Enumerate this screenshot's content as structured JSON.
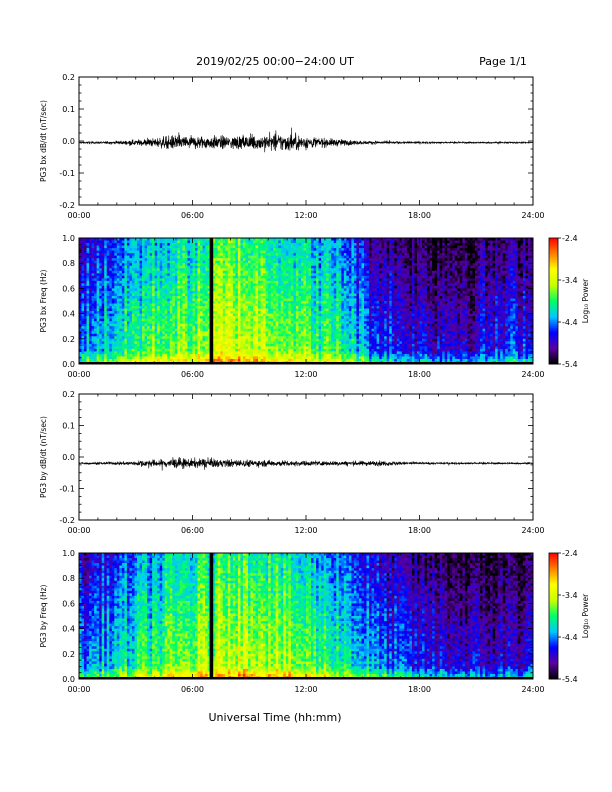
{
  "header": {
    "title": "2019/02/25  00:00−24:00 UT",
    "page": "Page 1/1"
  },
  "footer": {
    "xlabel": "Universal Time (hh:mm)"
  },
  "colors": {
    "trace": "#000000",
    "frame": "#000000",
    "gap_marker": "#000000"
  },
  "colorbar": {
    "label": "Log₁₀ Power",
    "ticks": [
      "-2.4",
      "-3.4",
      "-4.4",
      "-5.4"
    ],
    "range": [
      -5.4,
      -2.4
    ],
    "colormap": [
      "#000000",
      "#5a00a0",
      "#0000ff",
      "#00c8ff",
      "#00ff64",
      "#c8ff00",
      "#ffff00",
      "#ff8000",
      "#ff0000"
    ]
  },
  "chart_data": [
    {
      "type": "line",
      "ylabel": "PG3 bx dB/dt (nT/sec)",
      "x_range_hours": [
        0,
        24
      ],
      "xticks": [
        "00:00",
        "06:00",
        "12:00",
        "18:00",
        "24:00"
      ],
      "ylim": [
        -0.2,
        0.2
      ],
      "yticks": [
        "0.2",
        "0.1",
        "0.0",
        "-0.1",
        "-0.2"
      ],
      "baseline": -0.005,
      "activity_envelope": [
        {
          "hour": 0,
          "amp": 0.002
        },
        {
          "hour": 2,
          "amp": 0.004
        },
        {
          "hour": 4,
          "amp": 0.012
        },
        {
          "hour": 5,
          "amp": 0.02
        },
        {
          "hour": 7,
          "amp": 0.018
        },
        {
          "hour": 9,
          "amp": 0.02
        },
        {
          "hour": 11,
          "amp": 0.025
        },
        {
          "hour": 13,
          "amp": 0.012
        },
        {
          "hour": 15,
          "amp": 0.005
        },
        {
          "hour": 17,
          "amp": 0.003
        },
        {
          "hour": 20,
          "amp": 0.002
        },
        {
          "hour": 24,
          "amp": 0.002
        }
      ]
    },
    {
      "type": "heatmap",
      "ylabel": "PG3 bx Freq (Hz)",
      "x_range_hours": [
        0,
        24
      ],
      "xticks": [
        "00:00",
        "06:00",
        "12:00",
        "18:00",
        "24:00"
      ],
      "ylim": [
        0,
        1
      ],
      "yticks": [
        "1.0",
        "0.8",
        "0.6",
        "0.4",
        "0.2",
        "0.0"
      ],
      "data_gap_hour": 7.0,
      "level_profile": [
        {
          "hour": 0,
          "level": -4.3
        },
        {
          "hour": 2,
          "level": -4.0
        },
        {
          "hour": 4,
          "level": -3.7
        },
        {
          "hour": 6,
          "level": -3.6
        },
        {
          "hour": 8,
          "level": -3.3
        },
        {
          "hour": 10,
          "level": -3.4
        },
        {
          "hour": 12,
          "level": -3.7
        },
        {
          "hour": 14,
          "level": -3.9
        },
        {
          "hour": 15.5,
          "level": -4.4
        },
        {
          "hour": 18,
          "level": -4.7
        },
        {
          "hour": 21,
          "level": -4.7
        },
        {
          "hour": 24,
          "level": -4.5
        }
      ]
    },
    {
      "type": "line",
      "ylabel": "PG3 by dB/dt (nT/sec)",
      "x_range_hours": [
        0,
        24
      ],
      "xticks": [
        "00:00",
        "06:00",
        "12:00",
        "18:00",
        "24:00"
      ],
      "ylim": [
        -0.2,
        0.2
      ],
      "yticks": [
        "0.2",
        "0.1",
        "0.0",
        "-0.1",
        "-0.2"
      ],
      "baseline": -0.02,
      "activity_envelope": [
        {
          "hour": 0,
          "amp": 0.002
        },
        {
          "hour": 2,
          "amp": 0.004
        },
        {
          "hour": 4,
          "amp": 0.01
        },
        {
          "hour": 5,
          "amp": 0.014
        },
        {
          "hour": 7,
          "amp": 0.012
        },
        {
          "hour": 9,
          "amp": 0.01
        },
        {
          "hour": 11,
          "amp": 0.008
        },
        {
          "hour": 13,
          "amp": 0.006
        },
        {
          "hour": 16,
          "amp": 0.007
        },
        {
          "hour": 18,
          "amp": 0.003
        },
        {
          "hour": 24,
          "amp": 0.002
        }
      ]
    },
    {
      "type": "heatmap",
      "ylabel": "PG3 by Freq (Hz)",
      "x_range_hours": [
        0,
        24
      ],
      "xticks": [
        "00:00",
        "06:00",
        "12:00",
        "18:00",
        "24:00"
      ],
      "ylim": [
        0,
        1
      ],
      "yticks": [
        "1.0",
        "0.8",
        "0.6",
        "0.4",
        "0.2",
        "0.0"
      ],
      "data_gap_hour": 7.0,
      "level_profile": [
        {
          "hour": 0,
          "level": -4.4
        },
        {
          "hour": 2,
          "level": -4.1
        },
        {
          "hour": 4,
          "level": -3.8
        },
        {
          "hour": 6,
          "level": -3.6
        },
        {
          "hour": 8,
          "level": -3.3
        },
        {
          "hour": 10,
          "level": -3.4
        },
        {
          "hour": 12,
          "level": -3.7
        },
        {
          "hour": 14,
          "level": -3.9
        },
        {
          "hour": 16,
          "level": -4.4
        },
        {
          "hour": 18,
          "level": -4.6
        },
        {
          "hour": 21,
          "level": -4.8
        },
        {
          "hour": 24,
          "level": -4.7
        }
      ]
    }
  ]
}
